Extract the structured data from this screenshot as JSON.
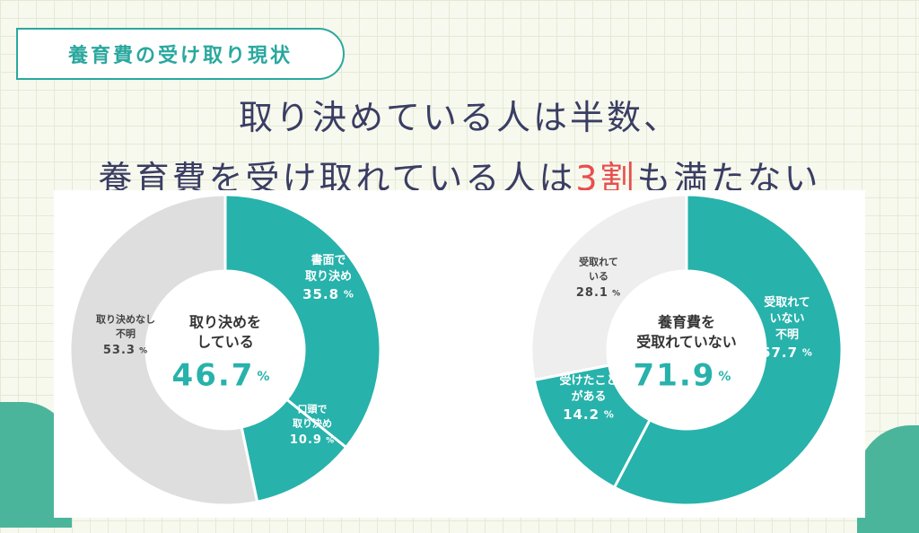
{
  "tag_label": "養育費の受け取り現状",
  "headline": {
    "line1": "取り決めている人は半数、",
    "line2_prefix": "養育費を受け取れている人は",
    "line2_highlight": "3割",
    "line2_suffix": "も満たない"
  },
  "chart_data": [
    {
      "type": "pie",
      "center_label": [
        "取り決めを",
        "している"
      ],
      "center_value": "46.7",
      "center_unit": "%",
      "slices": [
        {
          "label": [
            "書面で",
            "取り決め"
          ],
          "value": 35.8,
          "value_text": "35.8",
          "color": "#27b2ab"
        },
        {
          "label": [
            "口頭で",
            "取り決め"
          ],
          "value": 10.9,
          "value_text": "10.9",
          "color": "#27b2ab"
        },
        {
          "label": [
            "取り決めなし",
            "不明"
          ],
          "value": 53.3,
          "value_text": "53.3",
          "color": "#dedede"
        }
      ]
    },
    {
      "type": "pie",
      "center_label": [
        "養育費を",
        "受取れていない"
      ],
      "center_value": "71.9",
      "center_unit": "%",
      "slices": [
        {
          "label": [
            "受取れて",
            "いない",
            "不明"
          ],
          "value": 57.7,
          "value_text": "57.7",
          "color": "#27b2ab"
        },
        {
          "label": [
            "受けたこと",
            "がある"
          ],
          "value": 14.2,
          "value_text": "14.2",
          "color": "#27b2ab"
        },
        {
          "label": [
            "受取れて",
            "いる"
          ],
          "value": 28.1,
          "value_text": "28.1",
          "color": "#eeeeee"
        }
      ]
    }
  ],
  "colors": {
    "accent": "#27b2ab",
    "headline": "#3a3d63",
    "highlight": "#e84e4e",
    "label_dark": "#444444"
  }
}
